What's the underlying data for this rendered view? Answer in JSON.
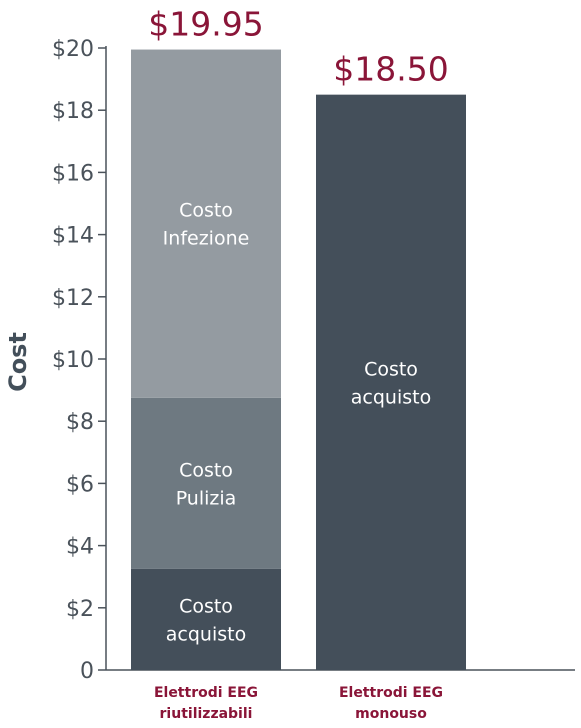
{
  "chart_data": {
    "type": "bar",
    "stacked": true,
    "ylabel": "Cost",
    "ylim": [
      0,
      20
    ],
    "yticks": [
      "0",
      "$2",
      "$4",
      "$6",
      "$8",
      "$10",
      "$12",
      "$14",
      "$16",
      "$18",
      "$20"
    ],
    "yticks_values": [
      0,
      2,
      4,
      6,
      8,
      10,
      12,
      14,
      16,
      18,
      20
    ],
    "grid": false,
    "categories": [
      [
        "Elettrodi EEG",
        "riutilizzabili"
      ],
      [
        "Elettrodi EEG",
        "monouso"
      ]
    ],
    "totals": [
      "$19.95",
      "$18.50"
    ],
    "total_values": [
      19.95,
      18.5
    ],
    "bars": [
      {
        "segments": [
          {
            "label": [
              "Costo",
              "acquisto"
            ],
            "value": 3.25,
            "color": "#444f5a"
          },
          {
            "label": [
              "Costo",
              "Pulizia"
            ],
            "value": 5.5,
            "color": "#6e7981"
          },
          {
            "label": [
              "Costo",
              "Infezione"
            ],
            "value": 11.2,
            "color": "#949ba1"
          }
        ]
      },
      {
        "segments": [
          {
            "label": [
              "Costo",
              "acquisto"
            ],
            "value": 18.5,
            "color": "#444f5a"
          }
        ]
      }
    ],
    "colors": {
      "axis": "#4a525a",
      "accent": "#8a1538",
      "segment_text": "#ffffff"
    }
  }
}
